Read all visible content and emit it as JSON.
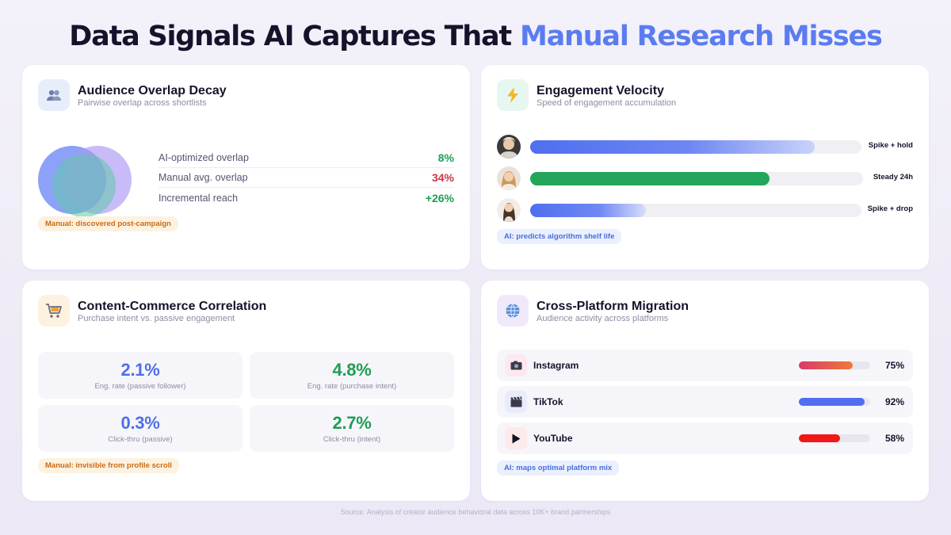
{
  "header": {
    "title_main": "Data Signals AI Captures That ",
    "title_accent": "Manual Research Misses"
  },
  "overlap_card": {
    "icon": "people-icon",
    "title": "Audience Overlap Decay",
    "subtitle": "Pairwise overlap across shortlists",
    "rows": [
      {
        "label": "AI-optimized overlap",
        "value": "8%",
        "color": "#1e9e55"
      },
      {
        "label": "Manual avg. overlap",
        "value": "34%",
        "color": "#d0343f"
      },
      {
        "label": "Incremental reach",
        "value": "+26%",
        "color": "#1e9e55"
      }
    ],
    "tag": "Manual: discovered post-campaign"
  },
  "velocity_card": {
    "icon": "lightning-icon",
    "title": "Engagement Velocity",
    "subtitle": "Speed of engagement accumulation",
    "rows": [
      {
        "label": "Spike + hold",
        "level": 0.86,
        "gradient": "linear-gradient(90deg,#4f6ff0 0%,#6d86f2 55%,#c8d3fa 100%)"
      },
      {
        "label": "Steady 24h",
        "level": 0.72,
        "gradient": "linear-gradient(90deg,#23a659,#23a659)"
      },
      {
        "label": "Spike + drop",
        "level": 0.35,
        "gradient": "linear-gradient(90deg,#4f6ff0 0%,#7088f2 60%,#d6defb 100%)"
      }
    ],
    "tag": "AI: predicts algorithm shelf life"
  },
  "commerce_card": {
    "icon": "cart-icon",
    "title": "Content-Commerce Correlation",
    "subtitle": "Purchase intent vs. passive engagement",
    "stats": [
      {
        "value": "2.1%",
        "caption": "Eng. rate (passive follower)",
        "color": "#4f6fe8"
      },
      {
        "value": "4.8%",
        "caption": "Eng. rate (purchase intent)",
        "color": "#1e9e55"
      },
      {
        "value": "0.3%",
        "caption": "Click-thru (passive)",
        "color": "#4f6fe8"
      },
      {
        "value": "2.7%",
        "caption": "Click-thru (intent)",
        "color": "#1e9e55"
      }
    ],
    "tag": "Manual: invisible from profile scroll"
  },
  "migration_card": {
    "icon": "globe-icon",
    "title": "Cross-Platform Migration",
    "subtitle": "Audience activity across platforms",
    "platforms": [
      {
        "name": "Instagram",
        "icon": "camera-icon",
        "pct": "75%",
        "level": 0.75,
        "fill": "linear-gradient(90deg,#d93a6a,#f07a3a)",
        "icon_bg": "#fde8ef"
      },
      {
        "name": "TikTok",
        "icon": "clapper-icon",
        "pct": "92%",
        "level": 0.92,
        "fill": "#4f6ff0",
        "icon_bg": "#e8ecfb"
      },
      {
        "name": "YouTube",
        "icon": "play-icon",
        "pct": "58%",
        "level": 0.58,
        "fill": "#f01818",
        "icon_bg": "#fdeaea"
      }
    ],
    "tag": "AI: maps optimal platform mix"
  },
  "footer": {
    "source": "Source: Analysis of creator audience behavioral data across 10K+ brand partnerships"
  }
}
